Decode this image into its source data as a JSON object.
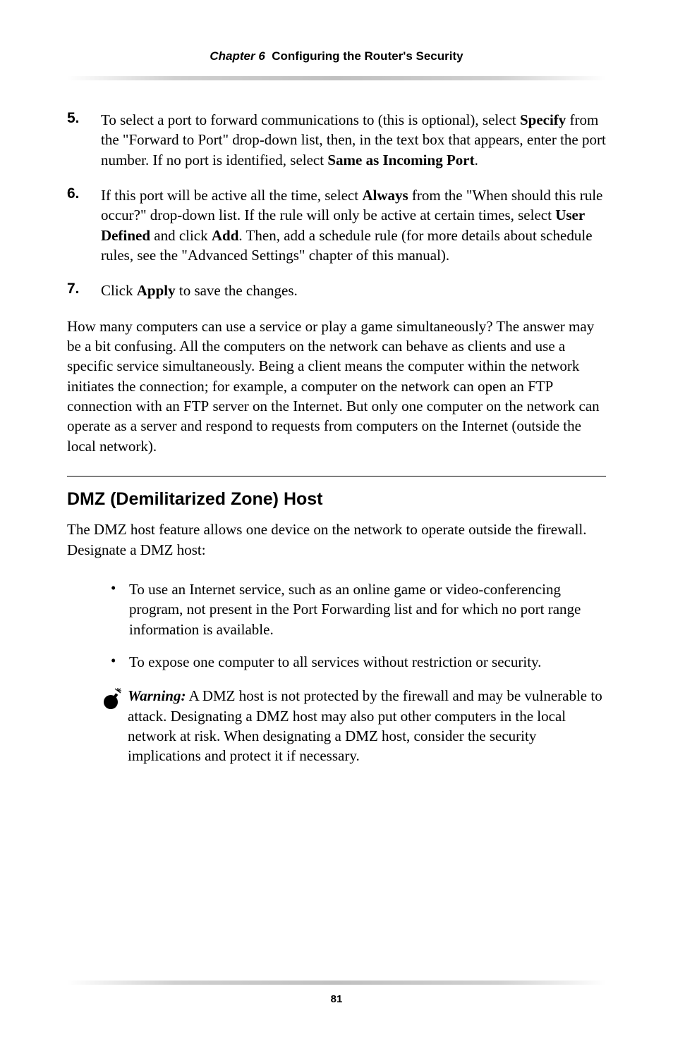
{
  "header": {
    "chapter_label": "Chapter 6",
    "chapter_title": "Configuring the Router's Security"
  },
  "steps": [
    {
      "num": "5.",
      "body_parts": [
        {
          "t": "text",
          "v": "To select a port to forward communications to (this is optional), select "
        },
        {
          "t": "bold",
          "v": "Specify"
        },
        {
          "t": "text",
          "v": " from the \"Forward to Port\" drop-down list, then, in the text box that appears, enter the port number. If no port is identified, select "
        },
        {
          "t": "bold",
          "v": "Same as Incoming Port"
        },
        {
          "t": "text",
          "v": "."
        }
      ]
    },
    {
      "num": "6.",
      "body_parts": [
        {
          "t": "text",
          "v": "If this port will be active all the time, select "
        },
        {
          "t": "bold",
          "v": "Always"
        },
        {
          "t": "text",
          "v": " from the \"When should this rule occur?\" drop-down list. If the rule will only be active at certain times, select "
        },
        {
          "t": "bold",
          "v": "User Defined"
        },
        {
          "t": "text",
          "v": " and click "
        },
        {
          "t": "bold",
          "v": "Add"
        },
        {
          "t": "text",
          "v": ". Then, add a schedule rule (for more details about schedule rules, see the \"Advanced Settings\" chapter of this manual)."
        }
      ]
    },
    {
      "num": "7.",
      "body_parts": [
        {
          "t": "text",
          "v": "Click "
        },
        {
          "t": "bold",
          "v": "Apply"
        },
        {
          "t": "text",
          "v": " to save the changes."
        }
      ]
    }
  ],
  "para1_parts": [
    {
      "t": "text",
      "v": "How many computers can use a service or play a game simultaneously? The answer may be a bit confusing. All the computers on the network can behave as clients and use a specific service simultaneously. Being a client means the computer within the network initiates the connection; for example, a computer on the network can open an "
    },
    {
      "t": "sc",
      "v": "FTP"
    },
    {
      "t": "text",
      "v": " connection with an "
    },
    {
      "t": "sc",
      "v": "FTP"
    },
    {
      "t": "text",
      "v": " server on the Internet. But only one computer on the network can operate as a server and respond to requests from computers on the Internet (outside the local network)."
    }
  ],
  "section_heading": "DMZ (Demilitarized Zone) Host",
  "para2_parts": [
    {
      "t": "text",
      "v": "The "
    },
    {
      "t": "sc",
      "v": "DMZ"
    },
    {
      "t": "text",
      "v": " host feature allows one device on the network to operate outside the firewall. Designate a "
    },
    {
      "t": "sc",
      "v": "DMZ"
    },
    {
      "t": "text",
      "v": " host:"
    }
  ],
  "bullets": [
    "To use an Internet service, such as an online game or video-conferencing program, not present in the Port Forwarding list and for which no port range information is available.",
    "To expose one computer to all services without restriction or security."
  ],
  "warning": {
    "label": "Warning:",
    "body_parts": [
      {
        "t": "text",
        "v": " A "
      },
      {
        "t": "sc",
        "v": "DMZ"
      },
      {
        "t": "text",
        "v": " host is not protected by the firewall and may be vulnerable to attack. Designating a "
      },
      {
        "t": "sc",
        "v": "DMZ"
      },
      {
        "t": "text",
        "v": " host may also put other computers in the local network at risk. When designating a "
      },
      {
        "t": "sc",
        "v": "DMZ"
      },
      {
        "t": "text",
        "v": " host, consider the security implications and protect it if necessary."
      }
    ]
  },
  "page_number": "81"
}
